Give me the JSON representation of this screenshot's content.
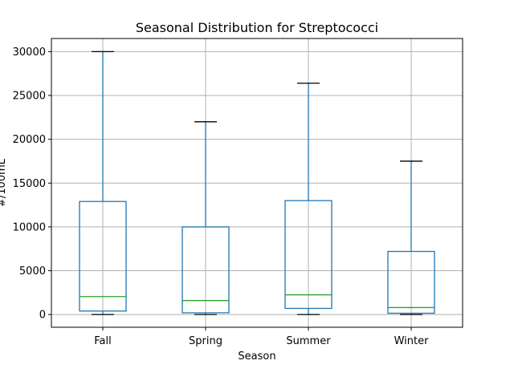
{
  "chart_data": {
    "type": "box",
    "title": "Seasonal Distribution for Streptococci",
    "xlabel": "Season",
    "ylabel": "#/100mL",
    "categories": [
      "Fall",
      "Spring",
      "Summer",
      "Winter"
    ],
    "boxes": [
      {
        "category": "Fall",
        "whisker_low": 0,
        "q1": 400,
        "median": 2050,
        "q3": 12900,
        "whisker_high": 30000
      },
      {
        "category": "Spring",
        "whisker_low": 0,
        "q1": 200,
        "median": 1600,
        "q3": 10000,
        "whisker_high": 22000
      },
      {
        "category": "Summer",
        "whisker_low": 0,
        "q1": 700,
        "median": 2250,
        "q3": 13000,
        "whisker_high": 26400
      },
      {
        "category": "Winter",
        "whisker_low": 0,
        "q1": 150,
        "median": 800,
        "q3": 7200,
        "whisker_high": 17500
      }
    ],
    "ylim": [
      -1450,
      31500
    ],
    "yticks": [
      0,
      5000,
      10000,
      15000,
      20000,
      25000,
      30000
    ],
    "grid": true,
    "colors": {
      "box": "#1f77b4",
      "median": "#2ca02c",
      "whisker": "#1f77b4",
      "cap": "#000000",
      "grid": "#b0b0b0",
      "axes": "#000000"
    }
  }
}
